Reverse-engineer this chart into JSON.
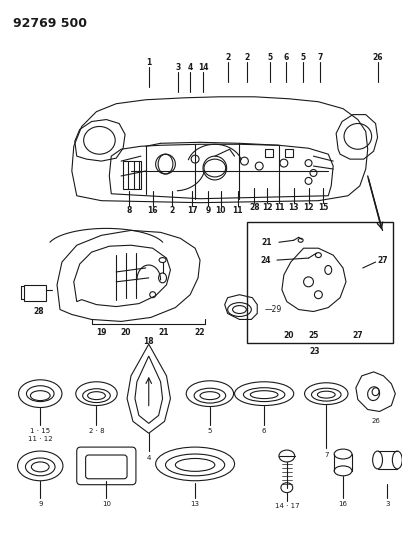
{
  "title": "92769 500",
  "bg_color": "#ffffff",
  "line_color": "#1a1a1a",
  "fig_width": 4.05,
  "fig_height": 5.33,
  "dpi": 100
}
